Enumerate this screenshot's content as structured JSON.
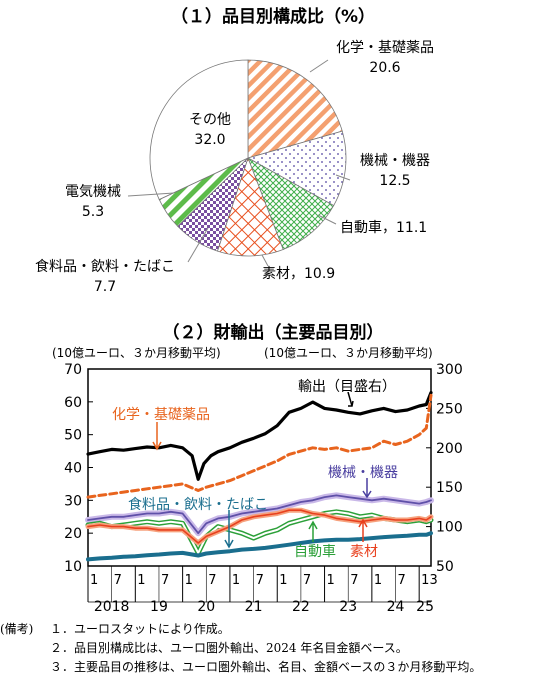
{
  "chart_data": [
    {
      "type": "pie",
      "title": "（１）品目別構成比（%）",
      "slices": [
        {
          "name": "化学・基礎薬品",
          "value_text": "20.6",
          "value": 20.6,
          "color": "#F4A070",
          "pattern": "diagonal-stripes"
        },
        {
          "name": "機械・機器",
          "value_text": "12.5",
          "value": 12.5,
          "color": "#7A6FB6",
          "pattern": "dots"
        },
        {
          "name": "自動車",
          "value_text": "11.1",
          "value": 11.1,
          "color": "#3FAE4A",
          "pattern": "crosshatch"
        },
        {
          "name": "素材",
          "value_text": "10.9",
          "value": 10.9,
          "color": "#E8501E",
          "pattern": "diamond-grid"
        },
        {
          "name": "食料品・飲料・たばこ",
          "value_text": "7.7",
          "value": 7.7,
          "color": "#7A4FA0",
          "pattern": "checker"
        },
        {
          "name": "電気機械",
          "value_text": "5.3",
          "value": 5.3,
          "color": "#5DBB4A",
          "pattern": "diagonal-stripes-bold"
        },
        {
          "name": "その他",
          "value_text": "32.0",
          "value": 32.0,
          "color": "#FFFFFF",
          "pattern": "none"
        }
      ]
    },
    {
      "type": "line",
      "title": "（２）財輸出（主要品目別）",
      "left_axis_label": "(10億ユーロ、３か月移動平均)",
      "right_axis_label": "(10億ユーロ、３か月移動平均)",
      "y_left": {
        "min": 10,
        "max": 70,
        "ticks": [
          "10",
          "20",
          "30",
          "40",
          "50",
          "60",
          "70"
        ]
      },
      "y_right": {
        "min": 50,
        "max": 300,
        "ticks": [
          "50",
          "100",
          "150",
          "200",
          "250",
          "300"
        ]
      },
      "x_month_ticks": [
        "1",
        "7",
        "1",
        "7",
        "1",
        "7",
        "1",
        "7",
        "1",
        "7",
        "1",
        "7",
        "1",
        "7",
        "13"
      ],
      "x_year_labels": [
        "2018",
        "19",
        "20",
        "21",
        "22",
        "23",
        "24",
        "25"
      ],
      "x_range": [
        2018.0,
        2025.25
      ],
      "series": [
        {
          "name": "輸出（目盛右）",
          "axis": "right",
          "color": "#000000",
          "points": [
            [
              2018.0,
              192
            ],
            [
              2018.25,
              195
            ],
            [
              2018.5,
              198
            ],
            [
              2018.75,
              197
            ],
            [
              2019.0,
              199
            ],
            [
              2019.25,
              201
            ],
            [
              2019.5,
              200
            ],
            [
              2019.75,
              203
            ],
            [
              2020.0,
              200
            ],
            [
              2020.2,
              190
            ],
            [
              2020.33,
              160
            ],
            [
              2020.45,
              180
            ],
            [
              2020.6,
              190
            ],
            [
              2020.75,
              195
            ],
            [
              2021.0,
              200
            ],
            [
              2021.25,
              207
            ],
            [
              2021.5,
              212
            ],
            [
              2021.75,
              218
            ],
            [
              2022.0,
              228
            ],
            [
              2022.25,
              245
            ],
            [
              2022.5,
              250
            ],
            [
              2022.75,
              258
            ],
            [
              2023.0,
              250
            ],
            [
              2023.25,
              248
            ],
            [
              2023.5,
              245
            ],
            [
              2023.75,
              243
            ],
            [
              2024.0,
              247
            ],
            [
              2024.25,
              250
            ],
            [
              2024.5,
              246
            ],
            [
              2024.75,
              248
            ],
            [
              2025.0,
              253
            ],
            [
              2025.15,
              255
            ],
            [
              2025.25,
              270
            ]
          ]
        },
        {
          "name": "化学・基礎薬品",
          "axis": "left",
          "color": "#E8641E",
          "points": [
            [
              2018.0,
              31
            ],
            [
              2018.25,
              31.5
            ],
            [
              2018.5,
              32
            ],
            [
              2018.75,
              32.5
            ],
            [
              2019.0,
              33
            ],
            [
              2019.25,
              33.5
            ],
            [
              2019.5,
              34
            ],
            [
              2019.75,
              34.5
            ],
            [
              2020.0,
              35
            ],
            [
              2020.33,
              33
            ],
            [
              2020.5,
              34
            ],
            [
              2020.75,
              35
            ],
            [
              2021.0,
              36
            ],
            [
              2021.25,
              37.5
            ],
            [
              2021.5,
              39
            ],
            [
              2021.75,
              40.5
            ],
            [
              2022.0,
              42
            ],
            [
              2022.25,
              44
            ],
            [
              2022.5,
              45
            ],
            [
              2022.75,
              46
            ],
            [
              2023.0,
              45.5
            ],
            [
              2023.25,
              46
            ],
            [
              2023.5,
              45
            ],
            [
              2023.75,
              45.5
            ],
            [
              2024.0,
              46
            ],
            [
              2024.25,
              48
            ],
            [
              2024.5,
              47
            ],
            [
              2024.75,
              48
            ],
            [
              2025.0,
              50
            ],
            [
              2025.15,
              52
            ],
            [
              2025.25,
              62
            ]
          ]
        },
        {
          "name": "機械・機器",
          "axis": "left",
          "color": "#5F50A8",
          "points": [
            [
              2018.0,
              24
            ],
            [
              2018.25,
              24.5
            ],
            [
              2018.5,
              25
            ],
            [
              2018.75,
              25
            ],
            [
              2019.0,
              25.5
            ],
            [
              2019.25,
              26
            ],
            [
              2019.5,
              26
            ],
            [
              2019.75,
              26.5
            ],
            [
              2020.0,
              26
            ],
            [
              2020.33,
              20
            ],
            [
              2020.5,
              23
            ],
            [
              2020.75,
              24.5
            ],
            [
              2021.0,
              25
            ],
            [
              2021.25,
              26
            ],
            [
              2021.5,
              26.5
            ],
            [
              2021.75,
              27
            ],
            [
              2022.0,
              27.5
            ],
            [
              2022.25,
              28.5
            ],
            [
              2022.5,
              29.5
            ],
            [
              2022.75,
              30
            ],
            [
              2023.0,
              31
            ],
            [
              2023.25,
              31.5
            ],
            [
              2023.5,
              31
            ],
            [
              2023.75,
              30.5
            ],
            [
              2024.0,
              30
            ],
            [
              2024.25,
              30.5
            ],
            [
              2024.5,
              30
            ],
            [
              2024.75,
              29.5
            ],
            [
              2025.0,
              29
            ],
            [
              2025.15,
              29.5
            ],
            [
              2025.25,
              30
            ]
          ]
        },
        {
          "name": "自動車",
          "axis": "left",
          "color": "#2CA039",
          "points": [
            [
              2018.0,
              22.5
            ],
            [
              2018.25,
              23
            ],
            [
              2018.5,
              22
            ],
            [
              2018.75,
              22.5
            ],
            [
              2019.0,
              23
            ],
            [
              2019.25,
              23.5
            ],
            [
              2019.5,
              23
            ],
            [
              2019.75,
              23.5
            ],
            [
              2020.0,
              23
            ],
            [
              2020.33,
              14
            ],
            [
              2020.5,
              19
            ],
            [
              2020.75,
              22
            ],
            [
              2021.0,
              21
            ],
            [
              2021.25,
              20
            ],
            [
              2021.5,
              18.5
            ],
            [
              2021.75,
              20
            ],
            [
              2022.0,
              21
            ],
            [
              2022.25,
              23
            ],
            [
              2022.5,
              24
            ],
            [
              2022.75,
              25
            ],
            [
              2023.0,
              26
            ],
            [
              2023.25,
              26.5
            ],
            [
              2023.5,
              26
            ],
            [
              2023.75,
              25
            ],
            [
              2024.0,
              25.5
            ],
            [
              2024.25,
              24.5
            ],
            [
              2024.5,
              24
            ],
            [
              2024.75,
              23.5
            ],
            [
              2025.0,
              24
            ],
            [
              2025.15,
              23.5
            ],
            [
              2025.25,
              24
            ]
          ]
        },
        {
          "name": "素材",
          "axis": "left",
          "color": "#E8401E",
          "points": [
            [
              2018.0,
              22
            ],
            [
              2018.25,
              22.5
            ],
            [
              2018.5,
              22
            ],
            [
              2018.75,
              22
            ],
            [
              2019.0,
              21.5
            ],
            [
              2019.25,
              21.5
            ],
            [
              2019.5,
              21
            ],
            [
              2019.75,
              21
            ],
            [
              2020.0,
              21
            ],
            [
              2020.33,
              17
            ],
            [
              2020.5,
              19
            ],
            [
              2020.75,
              20.5
            ],
            [
              2021.0,
              22
            ],
            [
              2021.25,
              24
            ],
            [
              2021.5,
              25
            ],
            [
              2021.75,
              25.5
            ],
            [
              2022.0,
              26
            ],
            [
              2022.25,
              27
            ],
            [
              2022.5,
              27
            ],
            [
              2022.75,
              26
            ],
            [
              2023.0,
              25.5
            ],
            [
              2023.25,
              24.5
            ],
            [
              2023.5,
              24
            ],
            [
              2023.75,
              23.5
            ],
            [
              2024.0,
              24
            ],
            [
              2024.25,
              24.5
            ],
            [
              2024.5,
              24
            ],
            [
              2024.75,
              24
            ],
            [
              2025.0,
              24.5
            ],
            [
              2025.15,
              24
            ],
            [
              2025.25,
              25
            ]
          ]
        },
        {
          "name": "食料品・飲料・たばこ",
          "axis": "left",
          "color": "#1A6E8E",
          "points": [
            [
              2018.0,
              12
            ],
            [
              2018.25,
              12.3
            ],
            [
              2018.5,
              12.5
            ],
            [
              2018.75,
              12.8
            ],
            [
              2019.0,
              13
            ],
            [
              2019.25,
              13.3
            ],
            [
              2019.5,
              13.5
            ],
            [
              2019.75,
              13.8
            ],
            [
              2020.0,
              14
            ],
            [
              2020.33,
              13.2
            ],
            [
              2020.5,
              13.8
            ],
            [
              2020.75,
              14.2
            ],
            [
              2021.0,
              14.5
            ],
            [
              2021.25,
              15
            ],
            [
              2021.5,
              15.2
            ],
            [
              2021.75,
              15.5
            ],
            [
              2022.0,
              16
            ],
            [
              2022.25,
              16.5
            ],
            [
              2022.5,
              17
            ],
            [
              2022.75,
              17.5
            ],
            [
              2023.0,
              17.8
            ],
            [
              2023.25,
              18
            ],
            [
              2023.5,
              18
            ],
            [
              2023.75,
              18.2
            ],
            [
              2024.0,
              18.5
            ],
            [
              2024.25,
              18.8
            ],
            [
              2024.5,
              19
            ],
            [
              2024.75,
              19.2
            ],
            [
              2025.0,
              19.5
            ],
            [
              2025.15,
              19.5
            ],
            [
              2025.25,
              20
            ]
          ]
        }
      ]
    }
  ],
  "notes": {
    "label": "(備考)",
    "lines": [
      "１．ユーロスタットにより作成。",
      "２．品目別構成比は、ユーロ圏外輸出、2024 年名目金額ベース。",
      "３．主要品目の推移は、ユーロ圏外輸出、名目、金額ベースの３か月移動平均。"
    ]
  }
}
